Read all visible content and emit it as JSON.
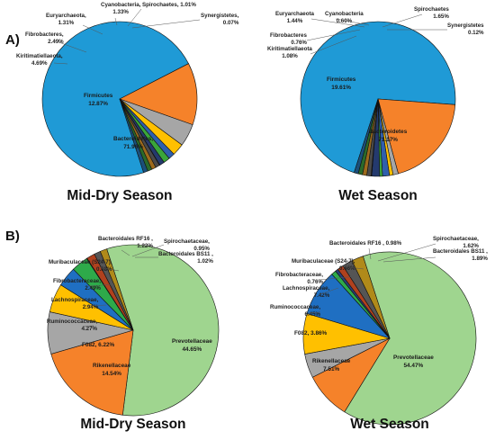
{
  "panels": [
    {
      "label": "A)"
    },
    {
      "label": "B)"
    }
  ],
  "chart_data": [
    {
      "type": "pie",
      "title": "Mid-Dry Season",
      "slices": [
        {
          "name": "Bacteroidetes",
          "value": 71.96,
          "display": "71.96%",
          "color": "#1f9ad6"
        },
        {
          "name": "Firmicutes",
          "value": 12.87,
          "display": "12.87%",
          "color": "#f5822a"
        },
        {
          "name": "Kiritimatiellaeota",
          "value": 4.69,
          "display": "4.69%",
          "color": "#a6a6a6"
        },
        {
          "name": "Fibrobacteres",
          "value": 2.49,
          "display": "2.49%",
          "color": "#ffc000"
        },
        {
          "name": "Euryarchaeota",
          "value": 1.31,
          "display": "1.31%",
          "color": "#2f5fad"
        },
        {
          "name": "Cyanobacteria",
          "value": 1.33,
          "display": "1.33%",
          "color": "#3aa63a"
        },
        {
          "name": "Spirochaetes",
          "value": 1.01,
          "display": "1.01%",
          "color": "#243a6e"
        },
        {
          "name": "Synergistetes",
          "value": 0.07,
          "display": "0.07%",
          "color": "#8b3a12"
        },
        {
          "name": "",
          "value": 0.9,
          "display": "",
          "color": "#4a4a4a"
        },
        {
          "name": "",
          "value": 0.9,
          "display": "",
          "color": "#9c6a1c"
        },
        {
          "name": "",
          "value": 0.9,
          "display": "",
          "color": "#2a6a2a"
        },
        {
          "name": "",
          "value": 0.9,
          "display": "",
          "color": "#1b4f7a"
        }
      ]
    },
    {
      "type": "pie",
      "title": "Wet Season",
      "slices": [
        {
          "name": "Bacteroidetes",
          "value": 71.17,
          "display": "71.17%",
          "color": "#1f9ad6"
        },
        {
          "name": "Firmicutes",
          "value": 19.61,
          "display": "19.61%",
          "color": "#f5822a"
        },
        {
          "name": "Kiritimatiellaeota",
          "value": 1.08,
          "display": "1.08%",
          "color": "#a6a6a6"
        },
        {
          "name": "Fibrobacteres",
          "value": 0.76,
          "display": "0.76%",
          "color": "#ffc000"
        },
        {
          "name": "Euryarchaeota",
          "value": 1.44,
          "display": "1.44%",
          "color": "#2f5fad"
        },
        {
          "name": "Cyanobacteria",
          "value": 0.6,
          "display": "0.60%",
          "color": "#3aa63a"
        },
        {
          "name": "Spirochaetes",
          "value": 1.65,
          "display": "1.65%",
          "color": "#243a6e"
        },
        {
          "name": "Synergistetes",
          "value": 0.12,
          "display": "0.12%",
          "color": "#8b3a12"
        },
        {
          "name": "",
          "value": 0.9,
          "display": "",
          "color": "#4a4a4a"
        },
        {
          "name": "",
          "value": 0.9,
          "display": "",
          "color": "#9c6a1c"
        },
        {
          "name": "",
          "value": 0.9,
          "display": "",
          "color": "#2a6a2a"
        },
        {
          "name": "",
          "value": 0.87,
          "display": "",
          "color": "#1b4f7a"
        }
      ]
    },
    {
      "type": "pie",
      "title": "Mid-Dry Season",
      "slices": [
        {
          "name": "Prevotellaceae",
          "value": 44.65,
          "display": "44.65%",
          "color": "#9fd58f"
        },
        {
          "name": "Rikenellaceae",
          "value": 14.54,
          "display": "14.54%",
          "color": "#f5822a"
        },
        {
          "name": "F082",
          "value": 6.22,
          "display": "6.22%",
          "color": "#a6a6a6"
        },
        {
          "name": "Ruminococcaceae",
          "value": 4.27,
          "display": "4.27%",
          "color": "#ffc000"
        },
        {
          "name": "Lachnospiraceae",
          "value": 2.94,
          "display": "2.94%",
          "color": "#1f6fc2"
        },
        {
          "name": "Fibrobacteraceae",
          "value": 2.49,
          "display": "2.49%",
          "color": "#2eaa4a"
        },
        {
          "name": "Muribaculaceae (S24-7)",
          "value": 0.08,
          "display": "0.08%",
          "color": "#2a3f7a"
        },
        {
          "name": "Bacteroidales RF16",
          "value": 1.22,
          "display": "1.22%",
          "color": "#b0411e"
        },
        {
          "name": "Spirochaetaceae",
          "value": 0.95,
          "display": "0.95%",
          "color": "#555555"
        },
        {
          "name": "Bacteroidales BS11",
          "value": 1.02,
          "display": "1.02%",
          "color": "#b08a1a"
        }
      ]
    },
    {
      "type": "pie",
      "title": "Wet Season",
      "slices": [
        {
          "name": "Prevotellaceae",
          "value": 54.47,
          "display": "54.47%",
          "color": "#9fd58f"
        },
        {
          "name": "Rikenellaceae",
          "value": 7.51,
          "display": "7.51%",
          "color": "#f5822a"
        },
        {
          "name": "F082",
          "value": 3.86,
          "display": "3.86%",
          "color": "#a6a6a6"
        },
        {
          "name": "Ruminococcaceae",
          "value": 6.45,
          "display": "6.45%",
          "color": "#ffc000"
        },
        {
          "name": "Lachnospiraceae",
          "value": 7.42,
          "display": "7.42%",
          "color": "#1f6fc2"
        },
        {
          "name": "Fibrobacteraceae",
          "value": 0.76,
          "display": "0.76%",
          "color": "#2eaa4a"
        },
        {
          "name": "Muribaculaceae (S24-7)",
          "value": 0.46,
          "display": "0.46%",
          "color": "#2a3f7a"
        },
        {
          "name": "Bacteroidales RF16",
          "value": 0.98,
          "display": "0.98%",
          "color": "#b0411e"
        },
        {
          "name": "Spirochaetaceae",
          "value": 1.62,
          "display": "1.62%",
          "color": "#555555"
        },
        {
          "name": "Bacteroidales BS11",
          "value": 1.89,
          "display": "1.89%",
          "color": "#b08a1a"
        }
      ]
    }
  ]
}
